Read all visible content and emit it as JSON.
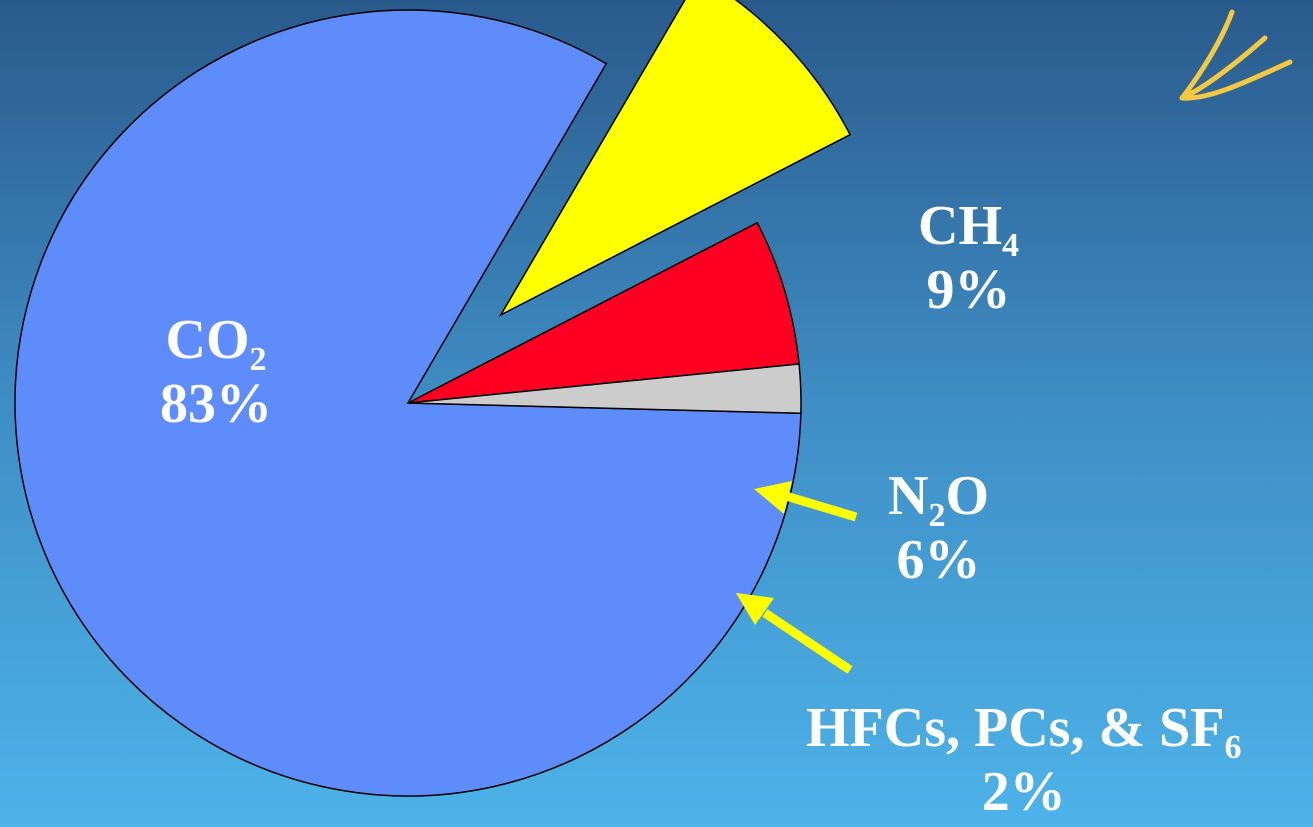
{
  "chart_data": {
    "type": "pie",
    "exploded": true,
    "slices": [
      {
        "key": "co2",
        "base": "CO",
        "sub": "2",
        "suffix": "",
        "value": 83,
        "label": "83%",
        "color": "#5f8cfb"
      },
      {
        "key": "ch4",
        "base": "CH",
        "sub": "4",
        "suffix": "",
        "value": 9,
        "label": "9%",
        "color": "#ffff00"
      },
      {
        "key": "n2o",
        "base": "N",
        "sub": "2",
        "suffix": "O",
        "value": 6,
        "label": "6%",
        "color": "#ff0022"
      },
      {
        "key": "other",
        "base": "HFCs, PCs, & SF",
        "sub": "6",
        "suffix": "",
        "value": 2,
        "label": "2%",
        "color": "#cccccc"
      }
    ],
    "annotation_color": "#ffff00"
  }
}
